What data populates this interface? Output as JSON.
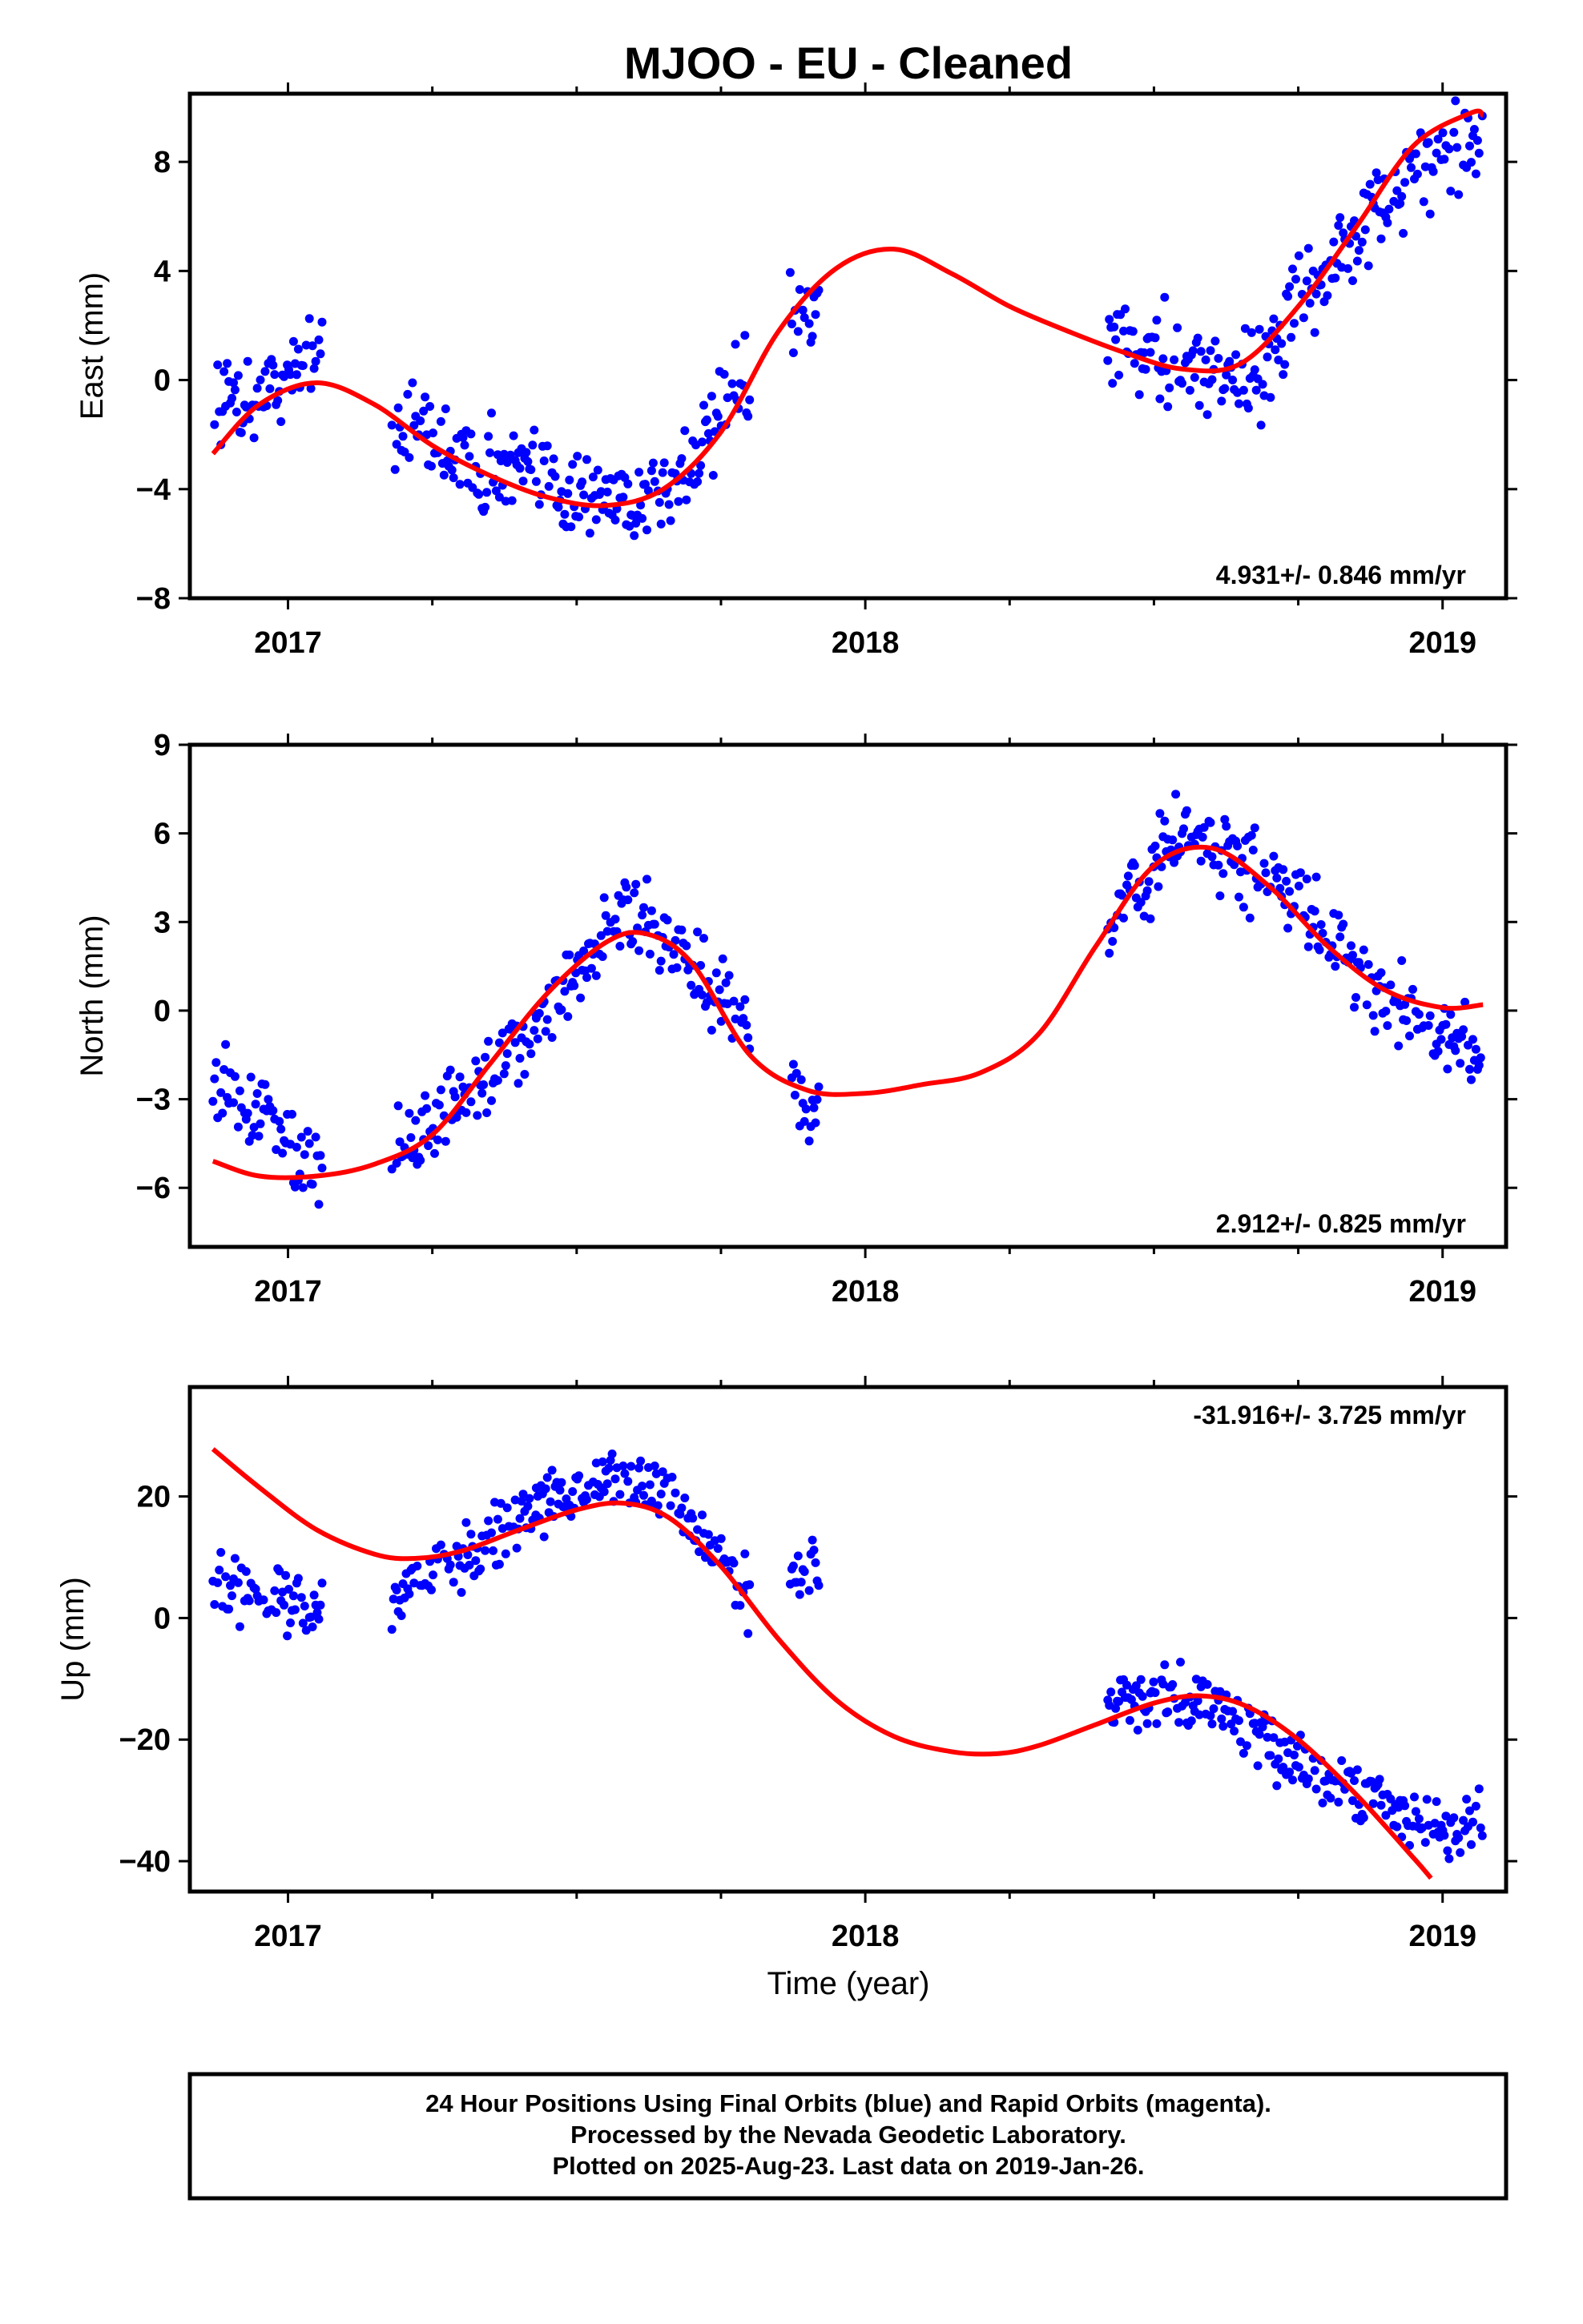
{
  "title": "MJOO  - EU - Cleaned",
  "xlabel": "Time (year)",
  "footer": {
    "line1": "24 Hour Positions Using Final Orbits (blue) and Rapid Orbits (magenta).",
    "line2": "Processed by the Nevada Geodetic Laboratory.",
    "line3": "Plotted on 2025-Aug-23. Last data on 2019-Jan-26."
  },
  "colors": {
    "data": "#0000ff",
    "fit": "#ff0000",
    "frame": "#000000"
  },
  "chart_data": [
    {
      "type": "scatter",
      "ylabel": "East (mm)",
      "rate": "4.931+/- 0.846 mm/yr",
      "xlim": [
        2016.83,
        2019.11
      ],
      "ylim": [
        -8,
        10.5
      ],
      "xticks": [
        2017,
        2018,
        2019
      ],
      "xtick_labels": [
        "2017",
        "2018",
        "2019"
      ],
      "yticks": [
        -8,
        -4,
        0,
        4,
        8
      ],
      "ytick_labels": [
        "−8",
        "−4",
        "0",
        "4",
        "8"
      ],
      "segments": [
        [
          2016.87,
          2017.06
        ],
        [
          2017.18,
          2017.43
        ],
        [
          2017.43,
          2017.8
        ],
        [
          2017.87,
          2017.92
        ],
        [
          2018.42,
          2018.68
        ],
        [
          2018.68,
          2019.07
        ]
      ],
      "fit": {
        "x": [
          2016.87,
          2016.95,
          2017.05,
          2017.15,
          2017.25,
          2017.35,
          2017.45,
          2017.55,
          2017.65,
          2017.75,
          2017.85,
          2017.95,
          2018.05,
          2018.15,
          2018.25,
          2018.35,
          2018.45,
          2018.55,
          2018.65,
          2018.75,
          2018.85,
          2018.95,
          2019.05,
          2019.07
        ],
        "y": [
          -2.7,
          -0.9,
          -0.1,
          -0.9,
          -2.4,
          -3.5,
          -4.3,
          -4.6,
          -4.0,
          -1.9,
          1.8,
          4.1,
          4.8,
          3.9,
          2.7,
          1.8,
          1.0,
          0.4,
          0.6,
          2.7,
          5.6,
          8.6,
          9.8,
          9.7
        ]
      },
      "series_trend": [
        [
          2016.87,
          -0.8
        ],
        [
          2016.95,
          -0.4
        ],
        [
          2017.0,
          0.2
        ],
        [
          2017.06,
          1.5
        ],
        [
          2017.18,
          -1.2
        ],
        [
          2017.3,
          -2.8
        ],
        [
          2017.43,
          -3.6
        ],
        [
          2017.55,
          -4.3
        ],
        [
          2017.65,
          -4.2
        ],
        [
          2017.75,
          -1.5
        ],
        [
          2017.8,
          0.0
        ],
        [
          2017.87,
          2.0
        ],
        [
          2017.92,
          2.3
        ],
        [
          2018.42,
          1.3
        ],
        [
          2018.55,
          0.8
        ],
        [
          2018.68,
          0.0
        ],
        [
          2018.75,
          3.2
        ],
        [
          2018.85,
          5.0
        ],
        [
          2018.95,
          7.8
        ],
        [
          2019.07,
          9.0
        ]
      ],
      "scatter_spread": 1.2
    },
    {
      "type": "scatter",
      "ylabel": "North (mm)",
      "rate": "2.912+/- 0.825 mm/yr",
      "xlim": [
        2016.83,
        2019.11
      ],
      "ylim": [
        -8,
        9
      ],
      "xticks": [
        2017,
        2018,
        2019
      ],
      "xtick_labels": [
        "2017",
        "2018",
        "2019"
      ],
      "yticks": [
        -6,
        -3,
        0,
        3,
        6,
        9
      ],
      "ytick_labels": [
        "−6",
        "−3",
        "0",
        "3",
        "6",
        "9"
      ],
      "segments": [
        [
          2016.87,
          2017.06
        ],
        [
          2017.18,
          2017.43
        ],
        [
          2017.43,
          2017.8
        ],
        [
          2017.87,
          2017.92
        ],
        [
          2018.42,
          2018.68
        ],
        [
          2018.68,
          2019.07
        ]
      ],
      "fit": {
        "x": [
          2016.87,
          2016.95,
          2017.05,
          2017.15,
          2017.25,
          2017.35,
          2017.45,
          2017.55,
          2017.62,
          2017.7,
          2017.8,
          2017.9,
          2018.0,
          2018.1,
          2018.2,
          2018.3,
          2018.4,
          2018.5,
          2018.6,
          2018.7,
          2018.8,
          2018.9,
          2019.0,
          2019.07
        ],
        "y": [
          -5.1,
          -5.6,
          -5.6,
          -5.2,
          -4.2,
          -1.8,
          0.6,
          2.3,
          2.6,
          1.6,
          -1.5,
          -2.7,
          -2.8,
          -2.5,
          -2.1,
          -0.8,
          2.2,
          4.9,
          5.5,
          4.2,
          2.2,
          0.7,
          0.1,
          0.2
        ]
      },
      "series_trend": [
        [
          2016.87,
          -2.5
        ],
        [
          2016.95,
          -3.5
        ],
        [
          2017.0,
          -4.5
        ],
        [
          2017.06,
          -5.5
        ],
        [
          2017.18,
          -5.0
        ],
        [
          2017.3,
          -3.0
        ],
        [
          2017.43,
          -0.5
        ],
        [
          2017.55,
          2.5
        ],
        [
          2017.62,
          3.5
        ],
        [
          2017.7,
          1.5
        ],
        [
          2017.8,
          -1.0
        ],
        [
          2017.87,
          -2.5
        ],
        [
          2017.92,
          -3.5
        ],
        [
          2018.42,
          3.0
        ],
        [
          2018.55,
          6.0
        ],
        [
          2018.62,
          5.5
        ],
        [
          2018.68,
          4.8
        ],
        [
          2018.8,
          2.5
        ],
        [
          2018.9,
          0.5
        ],
        [
          2019.0,
          -0.8
        ],
        [
          2019.07,
          -1.5
        ]
      ],
      "scatter_spread": 1.0
    },
    {
      "type": "scatter",
      "ylabel": "Up (mm)",
      "rate": "-31.916+/- 3.725 mm/yr",
      "xlim": [
        2016.83,
        2019.11
      ],
      "ylim": [
        -45,
        38
      ],
      "xticks": [
        2017,
        2018,
        2019
      ],
      "xtick_labels": [
        "2017",
        "2018",
        "2019"
      ],
      "yticks": [
        -40,
        -20,
        0,
        20
      ],
      "ytick_labels": [
        "−40",
        "−20",
        "0",
        "20"
      ],
      "segments": [
        [
          2016.87,
          2017.06
        ],
        [
          2017.18,
          2017.43
        ],
        [
          2017.43,
          2017.8
        ],
        [
          2017.87,
          2017.92
        ],
        [
          2018.42,
          2018.68
        ],
        [
          2018.68,
          2019.07
        ]
      ],
      "fit": {
        "x": [
          2016.87,
          2016.95,
          2017.05,
          2017.15,
          2017.22,
          2017.3,
          2017.4,
          2017.5,
          2017.58,
          2017.66,
          2017.75,
          2017.85,
          2017.95,
          2018.05,
          2018.15,
          2018.23,
          2018.3,
          2018.4,
          2018.5,
          2018.58,
          2018.66,
          2018.75,
          2018.85,
          2018.95,
          2018.98
        ],
        "y": [
          27.8,
          21.5,
          14.5,
          10.5,
          9.8,
          11.0,
          14.5,
          17.8,
          18.9,
          16.5,
          8.5,
          -3.5,
          -13.5,
          -19.5,
          -22.0,
          -22.3,
          -21.0,
          -17.5,
          -14.0,
          -12.8,
          -14.5,
          -20.0,
          -29.0,
          -39.5,
          -42.8
        ]
      },
      "series_trend": [
        [
          2016.87,
          6.0
        ],
        [
          2016.95,
          3.0
        ],
        [
          2017.0,
          2.5
        ],
        [
          2017.06,
          1.5
        ],
        [
          2017.18,
          3.0
        ],
        [
          2017.3,
          10.0
        ],
        [
          2017.43,
          18.0
        ],
        [
          2017.55,
          23.0
        ],
        [
          2017.65,
          21.0
        ],
        [
          2017.75,
          10.0
        ],
        [
          2017.8,
          4.0
        ],
        [
          2017.87,
          6.0
        ],
        [
          2017.92,
          9.0
        ],
        [
          2018.42,
          -14.0
        ],
        [
          2018.55,
          -13.0
        ],
        [
          2018.62,
          -15.0
        ],
        [
          2018.68,
          -20.0
        ],
        [
          2018.8,
          -26.0
        ],
        [
          2018.9,
          -30.0
        ],
        [
          2019.0,
          -36.0
        ],
        [
          2019.07,
          -32.0
        ]
      ],
      "scatter_spread": 3.5
    }
  ]
}
